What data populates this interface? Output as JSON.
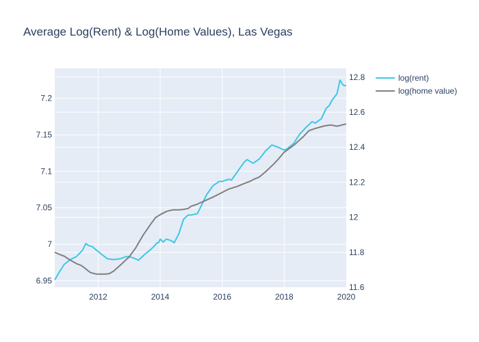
{
  "chart_data": {
    "type": "line",
    "title": "Average Log(Rent) & Log(Home Values), Las Vegas",
    "xlabel": "",
    "ylabel": "",
    "y2label": "",
    "xlim": [
      2010.6,
      2020.0
    ],
    "ylim": [
      6.941,
      7.241
    ],
    "y2lim": [
      11.6,
      12.85
    ],
    "grid": true,
    "legend": "top-right",
    "plot_bg": "#e5ecf6",
    "x_ticks": [
      {
        "value": 2012,
        "label": "2012"
      },
      {
        "value": 2014,
        "label": "2014"
      },
      {
        "value": 2016,
        "label": "2016"
      },
      {
        "value": 2018,
        "label": "2018"
      },
      {
        "value": 2020,
        "label": "2020"
      }
    ],
    "y_ticks": [
      {
        "value": 6.95,
        "label": "6.95"
      },
      {
        "value": 7.0,
        "label": "7"
      },
      {
        "value": 7.05,
        "label": "7.05"
      },
      {
        "value": 7.1,
        "label": "7.1"
      },
      {
        "value": 7.15,
        "label": "7.15"
      },
      {
        "value": 7.2,
        "label": "7.2"
      }
    ],
    "y2_ticks": [
      {
        "value": 11.6,
        "label": "11.6"
      },
      {
        "value": 11.8,
        "label": "11.8"
      },
      {
        "value": 12.0,
        "label": "12"
      },
      {
        "value": 12.2,
        "label": "12.2"
      },
      {
        "value": 12.4,
        "label": "12.4"
      },
      {
        "value": 12.6,
        "label": "12.6"
      },
      {
        "value": 12.8,
        "label": "12.8"
      }
    ],
    "series": [
      {
        "name": "log(rent)",
        "axis": "left",
        "color": "#3ec6e5",
        "x": [
          2010.6,
          2010.75,
          2010.9,
          2011.1,
          2011.3,
          2011.5,
          2011.6,
          2011.7,
          2011.8,
          2012.0,
          2012.15,
          2012.3,
          2012.5,
          2012.7,
          2012.9,
          2013.0,
          2013.15,
          2013.3,
          2013.5,
          2013.7,
          2013.8,
          2013.9,
          2013.95,
          2014.0,
          2014.1,
          2014.2,
          2014.35,
          2014.45,
          2014.6,
          2014.75,
          2014.9,
          2015.0,
          2015.2,
          2015.35,
          2015.5,
          2015.7,
          2015.9,
          2016.0,
          2016.2,
          2016.3,
          2016.5,
          2016.7,
          2016.8,
          2017.0,
          2017.2,
          2017.4,
          2017.6,
          2017.8,
          2018.0,
          2018.1,
          2018.3,
          2018.5,
          2018.7,
          2018.9,
          2019.0,
          2019.2,
          2019.35,
          2019.45,
          2019.55,
          2019.7,
          2019.8,
          2019.9,
          2020.0
        ],
        "y": [
          6.951,
          6.962,
          6.972,
          6.979,
          6.983,
          6.992,
          7.001,
          6.998,
          6.997,
          6.99,
          6.985,
          6.98,
          6.979,
          6.98,
          6.983,
          6.983,
          6.981,
          6.978,
          6.986,
          6.993,
          6.997,
          7.002,
          7.002,
          7.007,
          7.003,
          7.007,
          7.005,
          7.002,
          7.014,
          7.034,
          7.04,
          7.04,
          7.042,
          7.055,
          7.068,
          7.08,
          7.086,
          7.086,
          7.089,
          7.088,
          7.1,
          7.112,
          7.116,
          7.111,
          7.117,
          7.128,
          7.136,
          7.133,
          7.129,
          7.131,
          7.138,
          7.151,
          7.16,
          7.168,
          7.166,
          7.172,
          7.186,
          7.19,
          7.198,
          7.206,
          7.225,
          7.218,
          7.217
        ]
      },
      {
        "name": "log(home value)",
        "axis": "right",
        "color": "#7f7f7f",
        "x": [
          2010.6,
          2010.75,
          2010.9,
          2011.1,
          2011.3,
          2011.45,
          2011.6,
          2011.75,
          2011.95,
          2012.2,
          2012.35,
          2012.5,
          2012.75,
          2013.0,
          2013.2,
          2013.45,
          2013.7,
          2013.85,
          2014.0,
          2014.2,
          2014.4,
          2014.6,
          2014.75,
          2014.9,
          2015.0,
          2015.2,
          2015.45,
          2015.7,
          2015.95,
          2016.2,
          2016.5,
          2016.7,
          2016.9,
          2017.0,
          2017.2,
          2017.4,
          2017.65,
          2017.8,
          2018.0,
          2018.3,
          2018.6,
          2018.8,
          2019.0,
          2019.3,
          2019.5,
          2019.7,
          2019.85,
          2020.0
        ],
        "y": [
          11.8,
          11.788,
          11.778,
          11.755,
          11.735,
          11.725,
          11.705,
          11.684,
          11.675,
          11.675,
          11.677,
          11.692,
          11.732,
          11.774,
          11.822,
          11.898,
          11.962,
          11.998,
          12.015,
          12.033,
          12.042,
          12.042,
          12.045,
          12.05,
          12.063,
          12.075,
          12.095,
          12.115,
          12.137,
          12.16,
          12.177,
          12.192,
          12.205,
          12.215,
          12.23,
          12.26,
          12.302,
          12.33,
          12.372,
          12.41,
          12.458,
          12.495,
          12.507,
          12.522,
          12.527,
          12.52,
          12.526,
          12.533
        ]
      }
    ]
  }
}
